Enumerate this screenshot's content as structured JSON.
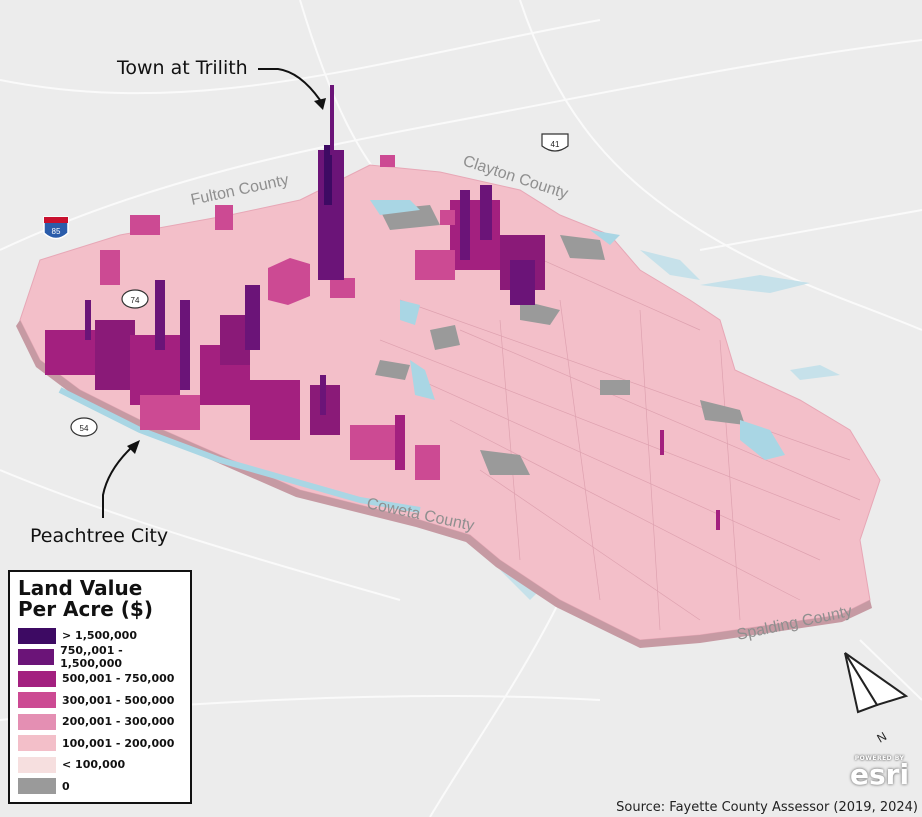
{
  "annotations": {
    "trilith": "Town at Trilith",
    "peachtree": "Peachtree City"
  },
  "counties": {
    "fulton": "Fulton County",
    "clayton": "Clayton County",
    "coweta": "Coweta County",
    "spalding": "Spalding County"
  },
  "route_shields": {
    "interstate": "85",
    "us_route": "41",
    "sr74": "74",
    "sr54": "54"
  },
  "legend": {
    "title_line1": "Land Value",
    "title_line2": "Per Acre ($)",
    "items": [
      {
        "label": "> 1,500,000",
        "color": "#3d0a63"
      },
      {
        "label": "750,,001 - 1,500,000",
        "color": "#6b1478"
      },
      {
        "label": "500,001 - 750,000",
        "color": "#a3207f"
      },
      {
        "label": "300,001 - 500,000",
        "color": "#cc4a93"
      },
      {
        "label": "200,001 - 300,000",
        "color": "#e48fb3"
      },
      {
        "label": "100,001 - 200,000",
        "color": "#f3bfc9"
      },
      {
        "label": "< 100,000",
        "color": "#f6dfdf"
      },
      {
        "label": "0",
        "color": "#9a9a9a"
      }
    ]
  },
  "north_arrow": "N",
  "branding": {
    "powered_by": "POWERED BY",
    "logo": "esri"
  },
  "source": "Source: Fayette County Assessor (2019, 2024)"
}
